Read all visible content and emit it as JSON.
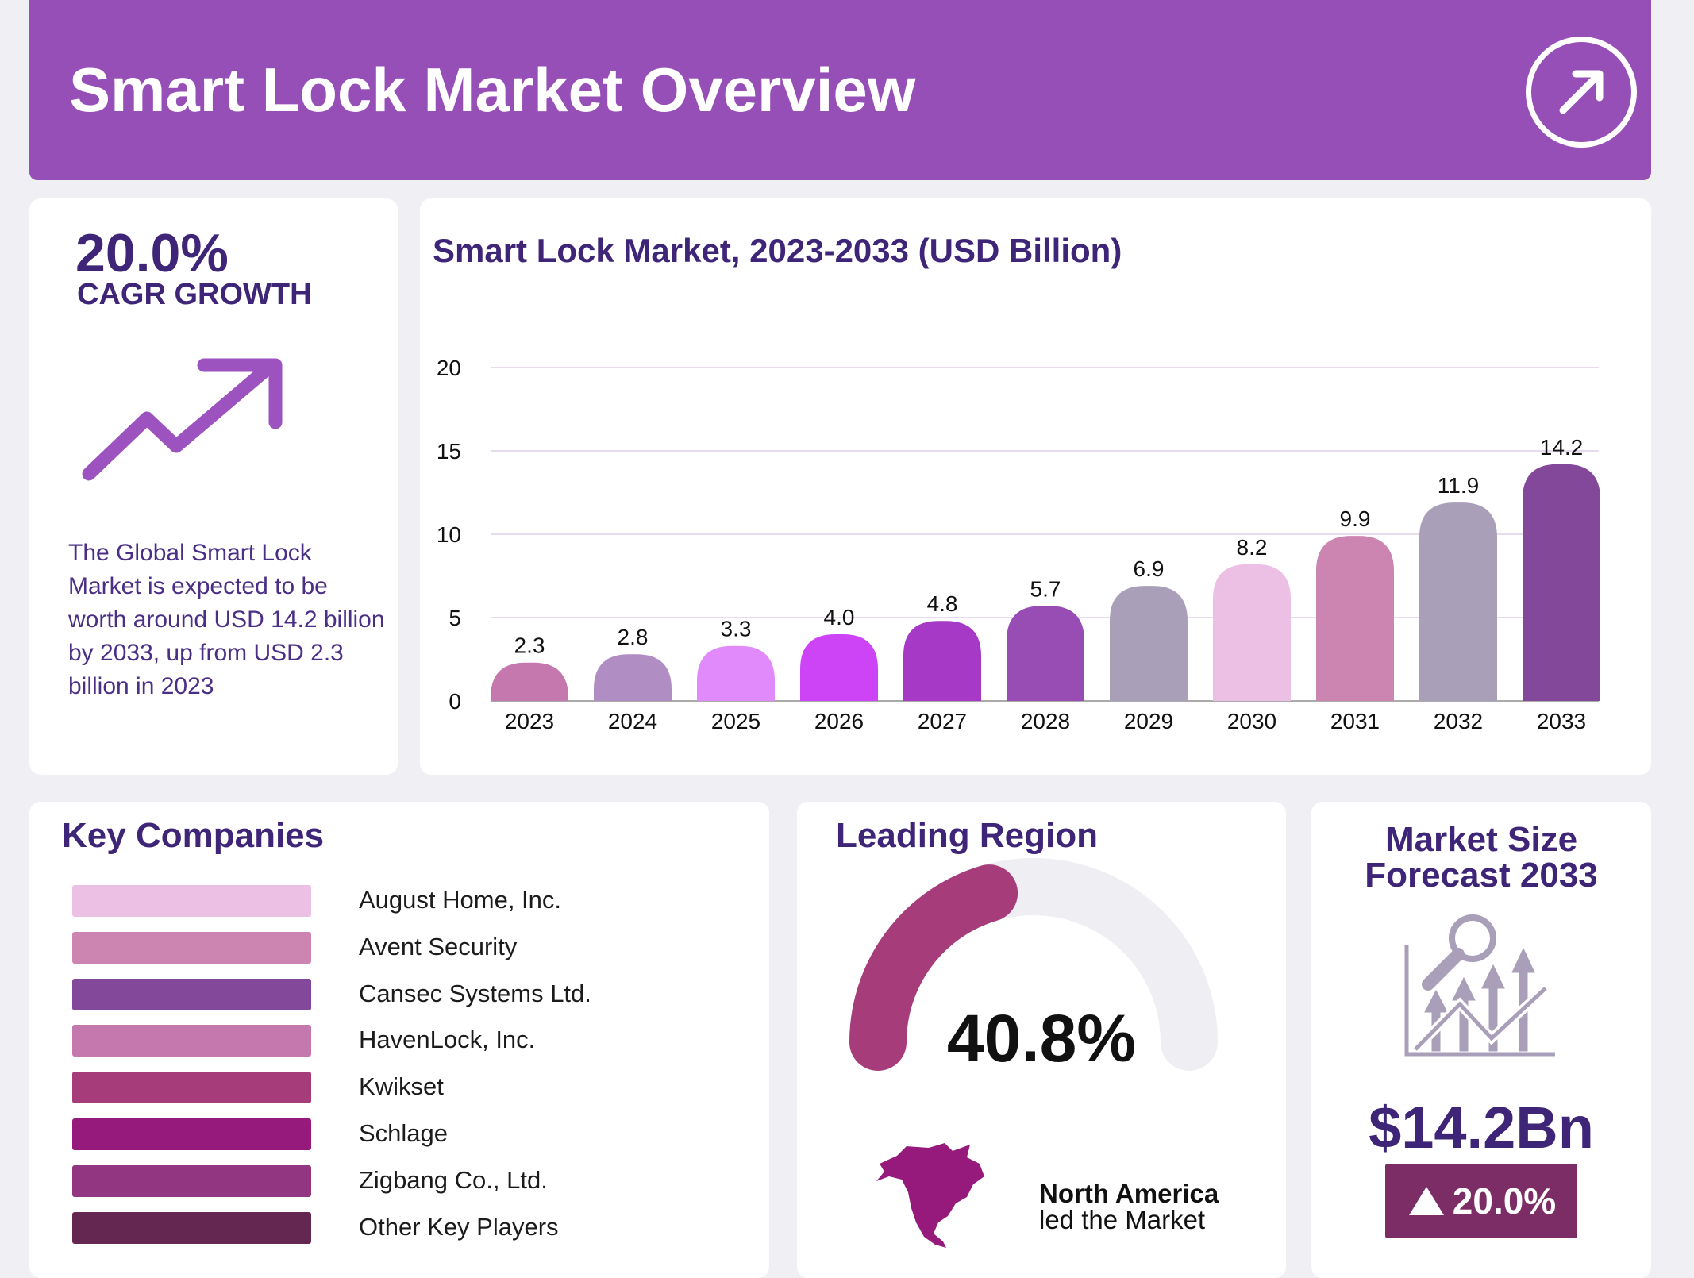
{
  "header": {
    "title": "Smart Lock Market Overview",
    "icon": "arrow-up-right-icon"
  },
  "cagr": {
    "value": "20.0%",
    "label": "CAGR GROWTH",
    "icon": "trend-up-arrow-icon",
    "description": "The Global Smart Lock Market is expected to be worth around USD 14.2 billion by 2033, up from USD 2.3 billion in 2023"
  },
  "chart_data": {
    "type": "bar",
    "title": "Smart Lock Market, 2023-2033 (USD Billion)",
    "categories": [
      "2023",
      "2024",
      "2025",
      "2026",
      "2027",
      "2028",
      "2029",
      "2030",
      "2031",
      "2032",
      "2033"
    ],
    "values": [
      2.3,
      2.8,
      3.3,
      4.0,
      4.8,
      5.7,
      6.9,
      8.2,
      9.9,
      11.9,
      14.2
    ],
    "value_labels": [
      "2.3",
      "2.8",
      "3.3",
      "4.0",
      "4.8",
      "5.7",
      "6.9",
      "8.2",
      "9.9",
      "11.9",
      "14.2"
    ],
    "colors": [
      "#c478ad",
      "#b08dc2",
      "#e08afc",
      "#cc44f5",
      "#a63ac6",
      "#984db5",
      "#a99fb9",
      "#ecc0e4",
      "#cc85b0",
      "#a99fb9",
      "#84489b"
    ],
    "ylim": [
      0,
      20
    ],
    "yticks": [
      "0",
      "5",
      "10",
      "15",
      "20"
    ],
    "grid": true,
    "xlabel": "",
    "ylabel": ""
  },
  "companies": {
    "title": "Key Companies",
    "items": [
      {
        "name": "August Home, Inc.",
        "color": "#ecc0e4"
      },
      {
        "name": "Avent Security",
        "color": "#cc85b0"
      },
      {
        "name": "Cansec Systems Ltd.",
        "color": "#84489b"
      },
      {
        "name": "HavenLock, Inc.",
        "color": "#c478ad"
      },
      {
        "name": "Kwikset",
        "color": "#a63d7a"
      },
      {
        "name": "Schlage",
        "color": "#961a7c"
      },
      {
        "name": "Zigbang Co., Ltd.",
        "color": "#923681"
      },
      {
        "name": "Other Key Players",
        "color": "#632752"
      }
    ]
  },
  "region": {
    "title": "Leading Region",
    "share": "40.8%",
    "share_value": 40.8,
    "gauge_color": "#a63d7a",
    "region_name": "North America",
    "caption": "led the Market",
    "map_icon": "north-america-map-icon"
  },
  "forecast": {
    "title_line1": "Market Size",
    "title_line2": "Forecast 2033",
    "icon": "growth-chart-magnifier-icon",
    "value": "$14.2Bn",
    "badge": "20.0%",
    "badge_icon": "triangle-up-icon"
  }
}
